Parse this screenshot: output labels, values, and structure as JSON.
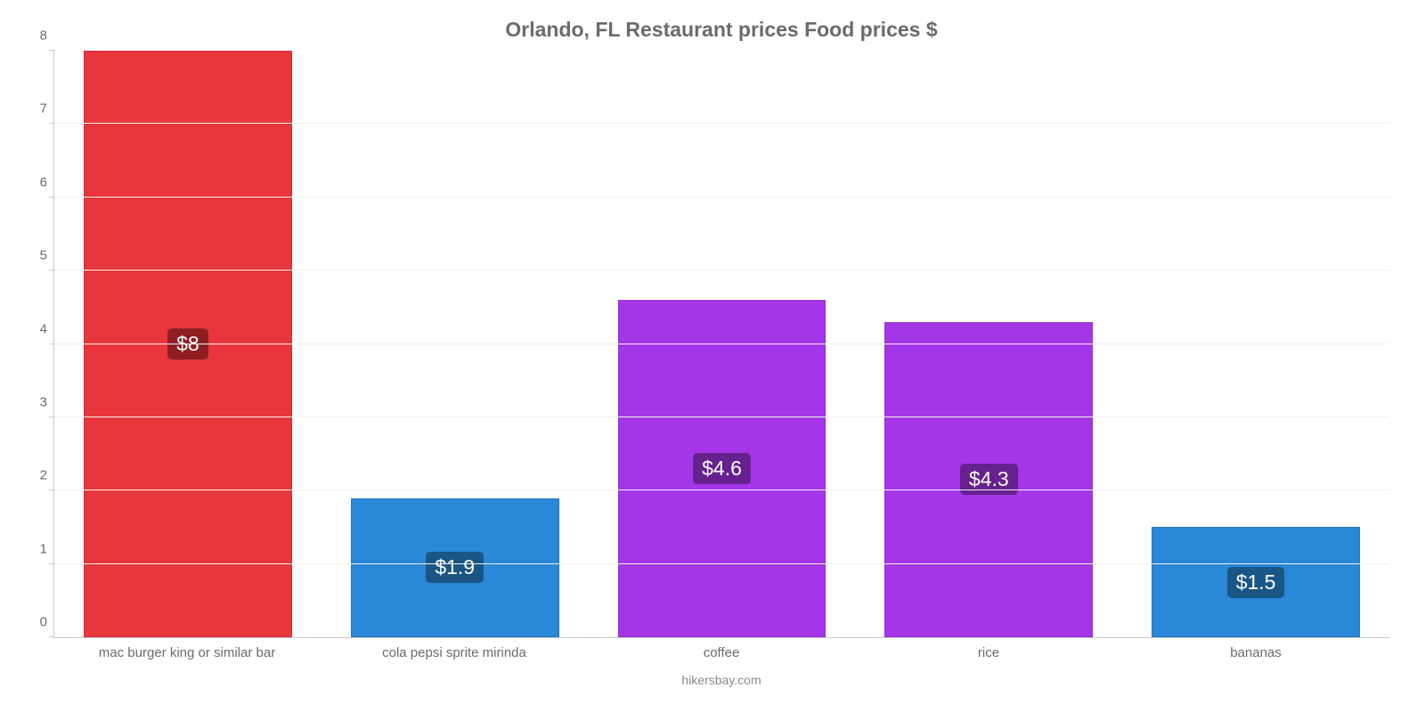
{
  "chart": {
    "type": "bar",
    "title": "Orlando, FL Restaurant prices Food prices $",
    "title_color": "#6b6b6b",
    "title_fontsize": 23,
    "background_color": "#ffffff",
    "grid_color": "#f0f0f0",
    "axis_color": "#c8c8c8",
    "tick_label_color": "#6b6b6b",
    "tick_fontsize": 15,
    "ylim": [
      0,
      8
    ],
    "ytick_step": 1,
    "bar_width_pct": 78,
    "categories": [
      "mac burger king or similar bar",
      "cola pepsi sprite mirinda",
      "coffee",
      "rice",
      "bananas"
    ],
    "values": [
      8,
      1.9,
      4.6,
      4.3,
      1.5
    ],
    "value_labels": [
      "$8",
      "$1.9",
      "$4.6",
      "$4.3",
      "$1.5"
    ],
    "bar_colors": [
      "#e8363c",
      "#2a88d8",
      "#a436e8",
      "#a436e8",
      "#2a88d8"
    ],
    "label_bg_colors": [
      "#8e1e22",
      "#195685",
      "#66218e",
      "#66218e",
      "#195685"
    ],
    "label_text_color": "#ffffff",
    "label_fontsize": 23,
    "caption": "hikersbay.com",
    "caption_color": "#8a8a8a"
  }
}
